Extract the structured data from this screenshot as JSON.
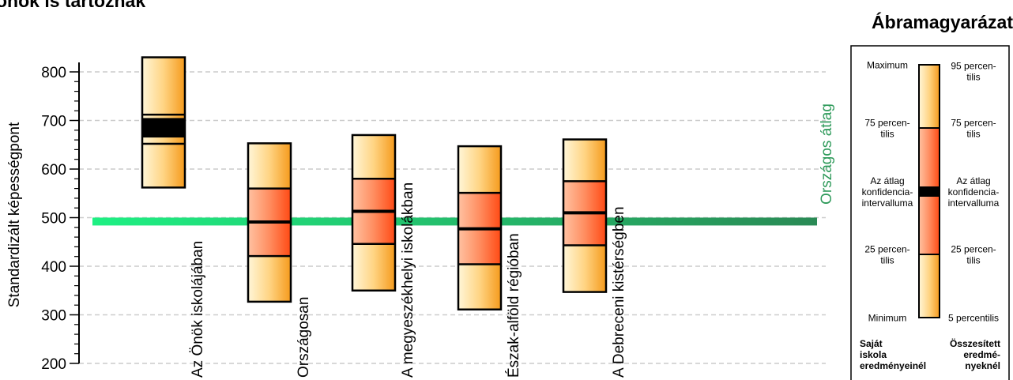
{
  "chart_title": "önök is tartoznak",
  "legend": {
    "title": "Ábramagyarázat",
    "left_labels": [
      "Maximum",
      "75 percen-\ntilis",
      "Az átlag\nkonfidencia-\nintervalluma",
      "25 percen-\ntilis",
      "Minimum"
    ],
    "right_labels": [
      "95 percen-\ntilis",
      "75 percen-\ntilis",
      "Az átlag\nkonfidencia-\nintervalluma",
      "25 percen-\ntilis",
      "5 percentilis"
    ],
    "footer_left": "Saját\niskola\neredményeinél",
    "footer_right": "Összesített\neredmé-\nnyeknél"
  },
  "colors": {
    "national_line": "#3aa36b",
    "national_text": "#2e9a5a"
  },
  "chart_data": {
    "type": "boxplot",
    "ylabel": "Standardizált képességpont",
    "ylim": [
      200,
      800
    ],
    "yticks": [
      200,
      300,
      400,
      500,
      600,
      700,
      800
    ],
    "grid": true,
    "reference_line": {
      "label": "Országos átlag",
      "value": 492
    },
    "categories": [
      "Az Önök iskolájában",
      "Országosan",
      "A megyeszékhelyi iskolákban",
      "Észak-alföld régióban",
      "A Debreceni kistérségben"
    ],
    "boxes": [
      {
        "category": "Az Önök iskolájában",
        "min": 562,
        "p25": 652,
        "ci_low": 665,
        "ci_high": 705,
        "mean": 686,
        "p75": 712,
        "max": 830
      },
      {
        "category": "Országosan",
        "p5": 327,
        "p25": 421,
        "mean": 491,
        "p75": 560,
        "p95": 653
      },
      {
        "category": "A megyeszékhelyi iskolákban",
        "p5": 350,
        "p25": 446,
        "mean": 513,
        "p75": 580,
        "p95": 670
      },
      {
        "category": "Észak-alföld régióban",
        "p5": 311,
        "p25": 404,
        "mean": 477,
        "p75": 551,
        "p95": 647
      },
      {
        "category": "A Debreceni kistérségben",
        "p5": 347,
        "p25": 443,
        "mean": 510,
        "p75": 575,
        "p95": 661
      }
    ]
  }
}
